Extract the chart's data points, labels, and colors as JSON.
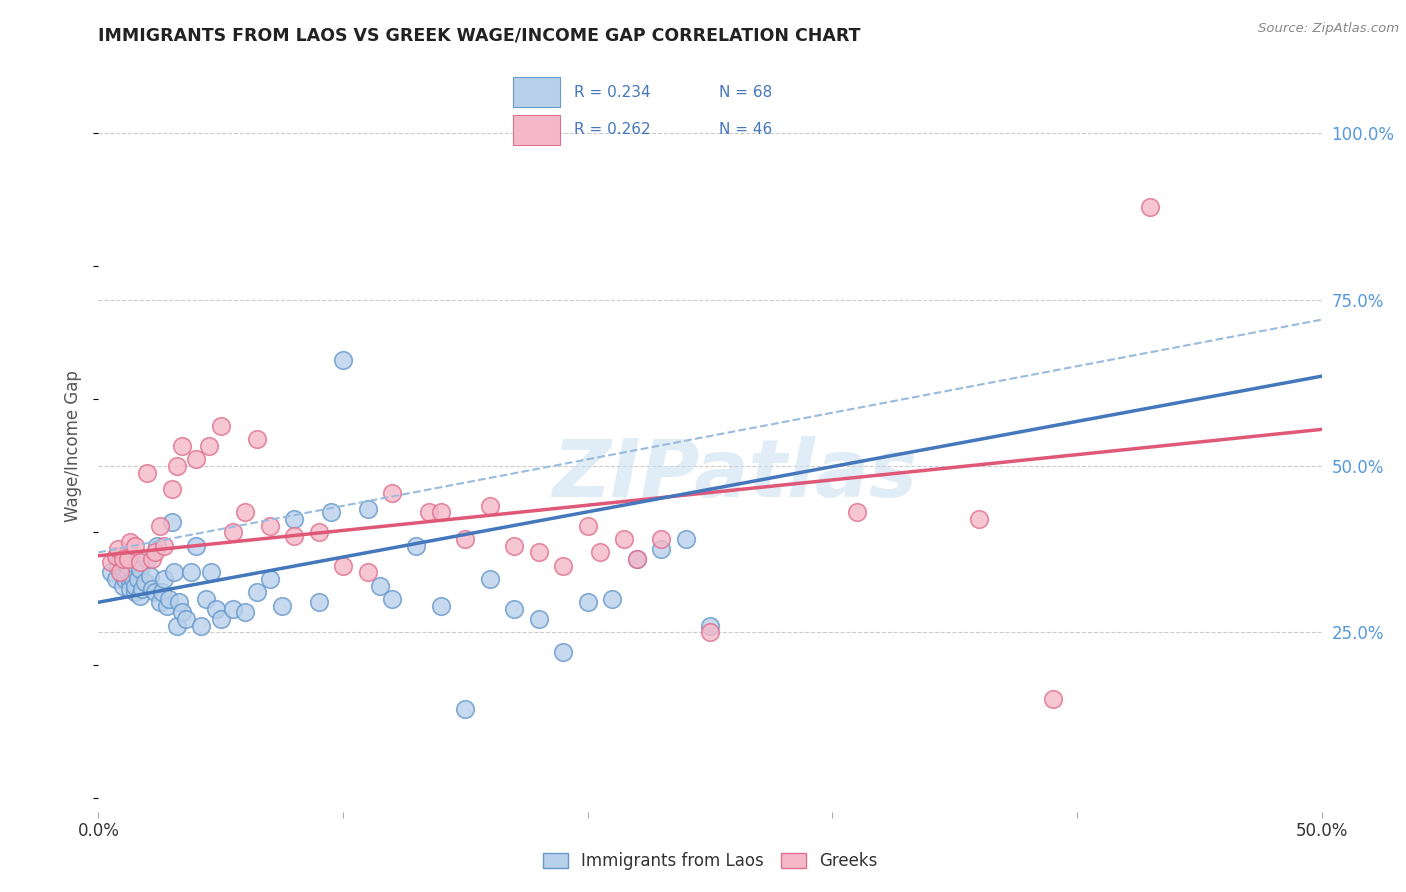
{
  "title": "IMMIGRANTS FROM LAOS VS GREEK WAGE/INCOME GAP CORRELATION CHART",
  "source": "Source: ZipAtlas.com",
  "ylabel": "Wage/Income Gap",
  "xlim": [
    0.0,
    0.5
  ],
  "ylim": [
    -0.02,
    1.08
  ],
  "ytick_labels_right": [
    "25.0%",
    "50.0%",
    "75.0%",
    "100.0%"
  ],
  "ytick_vals_right": [
    0.25,
    0.5,
    0.75,
    1.0
  ],
  "r_laos": 0.234,
  "n_laos": 68,
  "r_greek": 0.262,
  "n_greek": 46,
  "color_laos_fill": "#b8d0ea",
  "color_laos_edge": "#6699cc",
  "color_greek_fill": "#f5b8c8",
  "color_greek_edge": "#e07090",
  "color_laos_line": "#4477bb",
  "color_greek_line": "#e05878",
  "color_dashed_line": "#99bbdd",
  "watermark": "ZIPatlas",
  "watermark_color": "#ccddeebb",
  "laos_x": [
    0.005,
    0.007,
    0.008,
    0.009,
    0.01,
    0.01,
    0.01,
    0.011,
    0.012,
    0.012,
    0.013,
    0.013,
    0.014,
    0.015,
    0.015,
    0.016,
    0.017,
    0.017,
    0.018,
    0.019,
    0.02,
    0.021,
    0.022,
    0.023,
    0.024,
    0.025,
    0.026,
    0.027,
    0.028,
    0.029,
    0.03,
    0.031,
    0.032,
    0.033,
    0.034,
    0.036,
    0.038,
    0.04,
    0.042,
    0.044,
    0.046,
    0.048,
    0.05,
    0.055,
    0.06,
    0.065,
    0.07,
    0.075,
    0.08,
    0.09,
    0.095,
    0.1,
    0.11,
    0.115,
    0.12,
    0.13,
    0.14,
    0.15,
    0.16,
    0.17,
    0.18,
    0.19,
    0.2,
    0.21,
    0.22,
    0.23,
    0.24,
    0.25
  ],
  "laos_y": [
    0.34,
    0.33,
    0.35,
    0.36,
    0.32,
    0.345,
    0.355,
    0.33,
    0.34,
    0.35,
    0.325,
    0.315,
    0.33,
    0.31,
    0.32,
    0.33,
    0.345,
    0.305,
    0.315,
    0.325,
    0.36,
    0.335,
    0.315,
    0.31,
    0.38,
    0.295,
    0.31,
    0.33,
    0.29,
    0.3,
    0.415,
    0.34,
    0.26,
    0.295,
    0.28,
    0.27,
    0.34,
    0.38,
    0.26,
    0.3,
    0.34,
    0.285,
    0.27,
    0.285,
    0.28,
    0.31,
    0.33,
    0.29,
    0.42,
    0.295,
    0.43,
    0.66,
    0.435,
    0.32,
    0.3,
    0.38,
    0.29,
    0.135,
    0.33,
    0.285,
    0.27,
    0.22,
    0.295,
    0.3,
    0.36,
    0.375,
    0.39,
    0.26
  ],
  "greek_x": [
    0.005,
    0.007,
    0.008,
    0.009,
    0.01,
    0.012,
    0.013,
    0.015,
    0.017,
    0.02,
    0.022,
    0.023,
    0.025,
    0.027,
    0.03,
    0.032,
    0.034,
    0.04,
    0.045,
    0.05,
    0.055,
    0.06,
    0.065,
    0.07,
    0.08,
    0.09,
    0.1,
    0.11,
    0.12,
    0.135,
    0.14,
    0.15,
    0.16,
    0.17,
    0.18,
    0.19,
    0.2,
    0.205,
    0.215,
    0.22,
    0.23,
    0.25,
    0.31,
    0.36,
    0.39,
    0.43
  ],
  "greek_y": [
    0.355,
    0.365,
    0.375,
    0.34,
    0.36,
    0.36,
    0.385,
    0.38,
    0.355,
    0.49,
    0.36,
    0.37,
    0.41,
    0.38,
    0.465,
    0.5,
    0.53,
    0.51,
    0.53,
    0.56,
    0.4,
    0.43,
    0.54,
    0.41,
    0.395,
    0.4,
    0.35,
    0.34,
    0.46,
    0.43,
    0.43,
    0.39,
    0.44,
    0.38,
    0.37,
    0.35,
    0.41,
    0.37,
    0.39,
    0.36,
    0.39,
    0.25,
    0.43,
    0.42,
    0.15,
    0.89
  ]
}
